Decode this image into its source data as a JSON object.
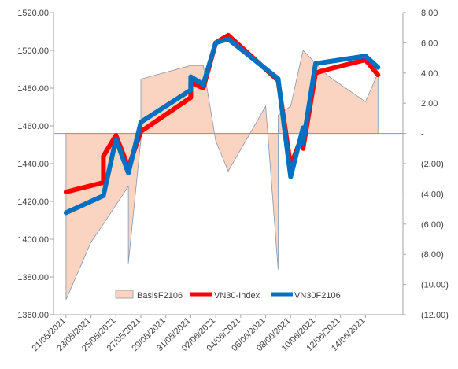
{
  "chart_data": {
    "type": "line",
    "x": [
      "21/05/2021",
      "24/05/2021",
      "25/05/2021",
      "26/05/2021",
      "27/05/2021",
      "28/05/2021",
      "31/05/2021",
      "01/06/2021",
      "02/06/2021",
      "03/06/2021",
      "04/06/2021",
      "07/06/2021",
      "08/06/2021",
      "09/06/2021",
      "10/06/2021",
      "11/06/2021",
      "14/06/2021",
      "15/06/2021"
    ],
    "x_tick_labels": [
      "21/05/2021",
      "23/05/2021",
      "25/05/2021",
      "27/05/2021",
      "29/05/2021",
      "31/05/2021",
      "02/06/2021",
      "04/06/2021",
      "06/06/2021",
      "08/06/2021",
      "10/06/2021",
      "12/06/2021",
      "14/06/2021"
    ],
    "left_axis": {
      "ylim": [
        1360,
        1520
      ],
      "ticks": [
        "1360.00",
        "1380.00",
        "1400.00",
        "1420.00",
        "1440.00",
        "1460.00",
        "1480.00",
        "1500.00",
        "1520.00"
      ]
    },
    "right_axis": {
      "ylim": [
        -12,
        8
      ],
      "ticks": [
        "8.00",
        "6.00",
        "4.00",
        "2.00",
        "-",
        "(2.00)",
        "(4.00)",
        "(6.00)",
        "(8.00)",
        "(10.00)",
        "(12.00)"
      ]
    },
    "series": [
      {
        "name": "BasisF2106",
        "type": "area",
        "axis": "right",
        "color": "#fad4c0",
        "edge_color": "#8497b0",
        "points": [
          [
            "21/05/2021",
            -11.0
          ],
          [
            "23/05/2021",
            -7.2
          ],
          [
            "24/05/2021",
            -6.0
          ],
          [
            "26/05/2021",
            -3.5
          ],
          [
            "26/05/2021",
            -8.6
          ],
          [
            "27/05/2021",
            -0.4
          ],
          [
            "27/05/2021",
            3.6
          ],
          [
            "31/05/2021",
            4.5
          ],
          [
            "01/06/2021",
            4.5
          ],
          [
            "02/06/2021",
            -0.5
          ],
          [
            "03/06/2021",
            -2.5
          ],
          [
            "06/06/2021",
            1.8
          ],
          [
            "07/06/2021",
            -9.0
          ],
          [
            "07/06/2021",
            1.2
          ],
          [
            "08/06/2021",
            1.8
          ],
          [
            "09/06/2021",
            5.5
          ],
          [
            "11/06/2021",
            3.8
          ],
          [
            "14/06/2021",
            2.1
          ],
          [
            "15/06/2021",
            4.0
          ]
        ]
      },
      {
        "name": "VN30-Index",
        "type": "line",
        "axis": "left",
        "color": "#ff0000",
        "points": [
          [
            "21/05/2021",
            1425.0
          ],
          [
            "24/05/2021",
            1430.0
          ],
          [
            "24/05/2021",
            1444.0
          ],
          [
            "25/05/2021",
            1455.0
          ],
          [
            "26/05/2021",
            1438.0
          ],
          [
            "27/05/2021",
            1457.0
          ],
          [
            "31/05/2021",
            1475.0
          ],
          [
            "31/05/2021",
            1483.0
          ],
          [
            "01/06/2021",
            1480.0
          ],
          [
            "02/06/2021",
            1504.0
          ],
          [
            "03/06/2021",
            1508.0
          ],
          [
            "07/06/2021",
            1484.0
          ],
          [
            "08/06/2021",
            1439.0
          ],
          [
            "09/06/2021",
            1456.0
          ],
          [
            "09/06/2021",
            1448.0
          ],
          [
            "10/06/2021",
            1488.0
          ],
          [
            "11/06/2021",
            1490.0
          ],
          [
            "14/06/2021",
            1495.0
          ],
          [
            "15/06/2021",
            1487.0
          ]
        ]
      },
      {
        "name": "VN30F2106",
        "type": "line",
        "axis": "left",
        "color": "#0070c0",
        "points": [
          [
            "21/05/2021",
            1414.0
          ],
          [
            "24/05/2021",
            1423.0
          ],
          [
            "25/05/2021",
            1453.0
          ],
          [
            "26/05/2021",
            1435.0
          ],
          [
            "27/05/2021",
            1462.0
          ],
          [
            "31/05/2021",
            1479.0
          ],
          [
            "31/05/2021",
            1486.0
          ],
          [
            "01/06/2021",
            1482.0
          ],
          [
            "02/06/2021",
            1504.0
          ],
          [
            "03/06/2021",
            1506.0
          ],
          [
            "07/06/2021",
            1485.0
          ],
          [
            "08/06/2021",
            1433.0
          ],
          [
            "09/06/2021",
            1459.0
          ],
          [
            "09/06/2021",
            1451.0
          ],
          [
            "10/06/2021",
            1493.0
          ],
          [
            "11/06/2021",
            1494.0
          ],
          [
            "14/06/2021",
            1497.0
          ],
          [
            "15/06/2021",
            1491.0
          ]
        ]
      }
    ],
    "legend": {
      "placement": "bottom-center",
      "items": [
        "BasisF2106",
        "VN30-Index",
        "VN30F2106"
      ]
    },
    "grid": false
  }
}
